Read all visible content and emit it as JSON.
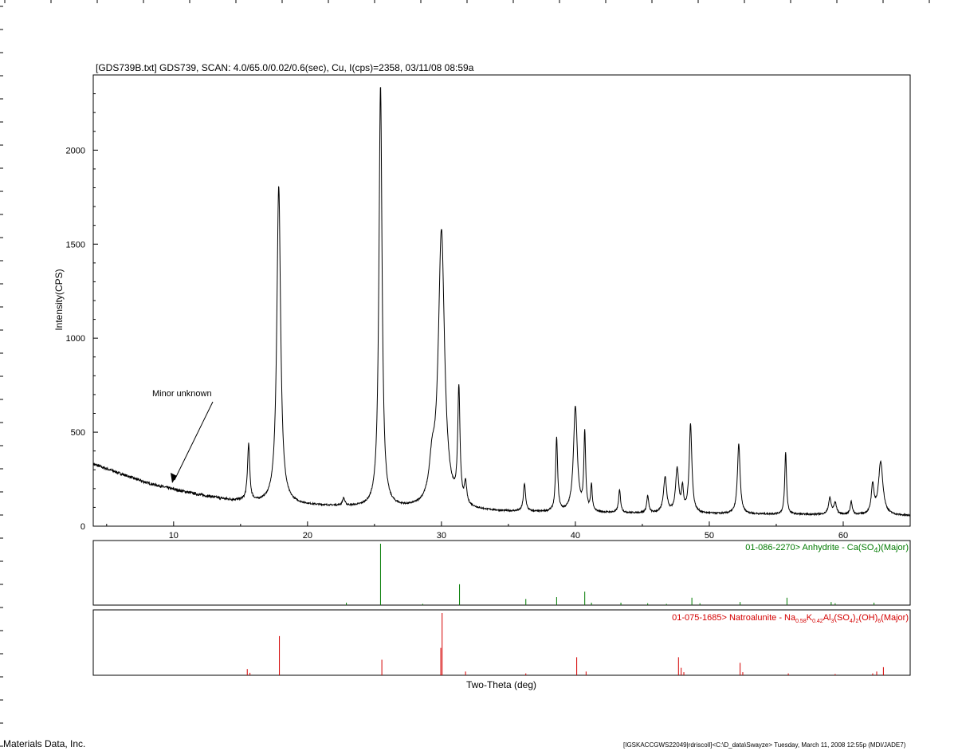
{
  "header": {
    "title": "[GDS739B.txt] GDS739, SCAN: 4.0/65.0/0.02/0.6(sec), Cu, I(cps)=2358, 03/11/08 08:59a"
  },
  "footer": {
    "left": "Materials Data, Inc.",
    "right": "[IGSKACCGWS22049|rdriscoll]<C:\\D_data\\Swayze> Tuesday, March 11, 2008 12:55p (MDI/JADE7)"
  },
  "annotation": {
    "text": "Minor unknown"
  },
  "chart_data": {
    "type": "line",
    "title": "[GDS739B.txt] GDS739, SCAN: 4.0/65.0/0.02/0.6(sec), Cu, I(cps)=2358, 03/11/08 08:59a",
    "xlabel": "Two-Theta (deg)",
    "ylabel": "Intensity(CPS)",
    "xlim": [
      4.0,
      65.0
    ],
    "ylim": [
      0,
      2400
    ],
    "x_ticks": [
      10,
      20,
      30,
      40,
      50,
      60
    ],
    "y_ticks": [
      0,
      500,
      1000,
      1500,
      2000
    ],
    "grid": false,
    "series": [
      {
        "color": "#000000",
        "background": [
          [
            4.0,
            330
          ],
          [
            6,
            280
          ],
          [
            8,
            230
          ],
          [
            10,
            195
          ],
          [
            12,
            165
          ],
          [
            14,
            140
          ],
          [
            16,
            125
          ],
          [
            20,
            110
          ],
          [
            25,
            95
          ],
          [
            30,
            85
          ],
          [
            35,
            75
          ],
          [
            40,
            70
          ],
          [
            50,
            65
          ],
          [
            60,
            60
          ],
          [
            65,
            55
          ]
        ],
        "peaks": [
          {
            "x": 15.6,
            "y": 300,
            "w": 0.1
          },
          {
            "x": 17.85,
            "y": 1690,
            "w": 0.17
          },
          {
            "x": 22.7,
            "y": 40,
            "w": 0.1
          },
          {
            "x": 25.45,
            "y": 2240,
            "w": 0.14
          },
          {
            "x": 29.3,
            "y": 180,
            "w": 0.25
          },
          {
            "x": 30.0,
            "y": 1470,
            "w": 0.28
          },
          {
            "x": 31.3,
            "y": 600,
            "w": 0.1
          },
          {
            "x": 31.8,
            "y": 110,
            "w": 0.1
          },
          {
            "x": 36.2,
            "y": 145,
            "w": 0.1
          },
          {
            "x": 38.6,
            "y": 390,
            "w": 0.09
          },
          {
            "x": 40.0,
            "y": 560,
            "w": 0.17
          },
          {
            "x": 40.7,
            "y": 410,
            "w": 0.08
          },
          {
            "x": 41.2,
            "y": 140,
            "w": 0.07
          },
          {
            "x": 43.3,
            "y": 120,
            "w": 0.09
          },
          {
            "x": 45.4,
            "y": 90,
            "w": 0.09
          },
          {
            "x": 46.7,
            "y": 190,
            "w": 0.14
          },
          {
            "x": 47.6,
            "y": 230,
            "w": 0.14
          },
          {
            "x": 48.0,
            "y": 120,
            "w": 0.09
          },
          {
            "x": 48.6,
            "y": 470,
            "w": 0.12
          },
          {
            "x": 52.2,
            "y": 370,
            "w": 0.12
          },
          {
            "x": 55.7,
            "y": 330,
            "w": 0.08
          },
          {
            "x": 59.0,
            "y": 85,
            "w": 0.12
          },
          {
            "x": 59.4,
            "y": 60,
            "w": 0.12
          },
          {
            "x": 60.6,
            "y": 70,
            "w": 0.09
          },
          {
            "x": 62.2,
            "y": 150,
            "w": 0.12
          },
          {
            "x": 62.8,
            "y": 280,
            "w": 0.2
          }
        ]
      }
    ],
    "references": [
      {
        "label": "01-086-2270> Anhydrite - Ca(SO",
        "label_sub": "4",
        "label_end": ")(Major)",
        "color": "#007a00",
        "sticks": [
          {
            "x": 22.9,
            "y": 4
          },
          {
            "x": 25.45,
            "y": 100
          },
          {
            "x": 28.6,
            "y": 2
          },
          {
            "x": 31.35,
            "y": 34
          },
          {
            "x": 36.3,
            "y": 10
          },
          {
            "x": 38.6,
            "y": 13
          },
          {
            "x": 40.7,
            "y": 22
          },
          {
            "x": 41.2,
            "y": 4
          },
          {
            "x": 43.4,
            "y": 4
          },
          {
            "x": 45.4,
            "y": 3
          },
          {
            "x": 46.8,
            "y": 2
          },
          {
            "x": 48.7,
            "y": 12
          },
          {
            "x": 49.3,
            "y": 3
          },
          {
            "x": 52.3,
            "y": 5
          },
          {
            "x": 55.8,
            "y": 12
          },
          {
            "x": 59.1,
            "y": 5
          },
          {
            "x": 59.4,
            "y": 3
          },
          {
            "x": 62.3,
            "y": 4
          }
        ]
      },
      {
        "label_parts": [
          "01-075-1685> Natroalunite - Na",
          "0.58",
          "K",
          "0.42",
          "Al",
          "3",
          "(SO",
          "4",
          ")",
          "2",
          "(OH)",
          "6",
          "(Major)"
        ],
        "color": "#d40000",
        "sticks": [
          {
            "x": 15.5,
            "y": 10
          },
          {
            "x": 15.7,
            "y": 4
          },
          {
            "x": 17.9,
            "y": 63
          },
          {
            "x": 25.55,
            "y": 25
          },
          {
            "x": 29.95,
            "y": 44
          },
          {
            "x": 30.05,
            "y": 100
          },
          {
            "x": 31.8,
            "y": 6
          },
          {
            "x": 36.3,
            "y": 3
          },
          {
            "x": 40.1,
            "y": 29
          },
          {
            "x": 40.8,
            "y": 6
          },
          {
            "x": 47.7,
            "y": 29
          },
          {
            "x": 47.9,
            "y": 12
          },
          {
            "x": 48.1,
            "y": 5
          },
          {
            "x": 52.3,
            "y": 20
          },
          {
            "x": 52.5,
            "y": 5
          },
          {
            "x": 55.9,
            "y": 3
          },
          {
            "x": 59.4,
            "y": 2
          },
          {
            "x": 62.2,
            "y": 3
          },
          {
            "x": 62.5,
            "y": 6
          },
          {
            "x": 63.0,
            "y": 13
          }
        ]
      }
    ]
  }
}
